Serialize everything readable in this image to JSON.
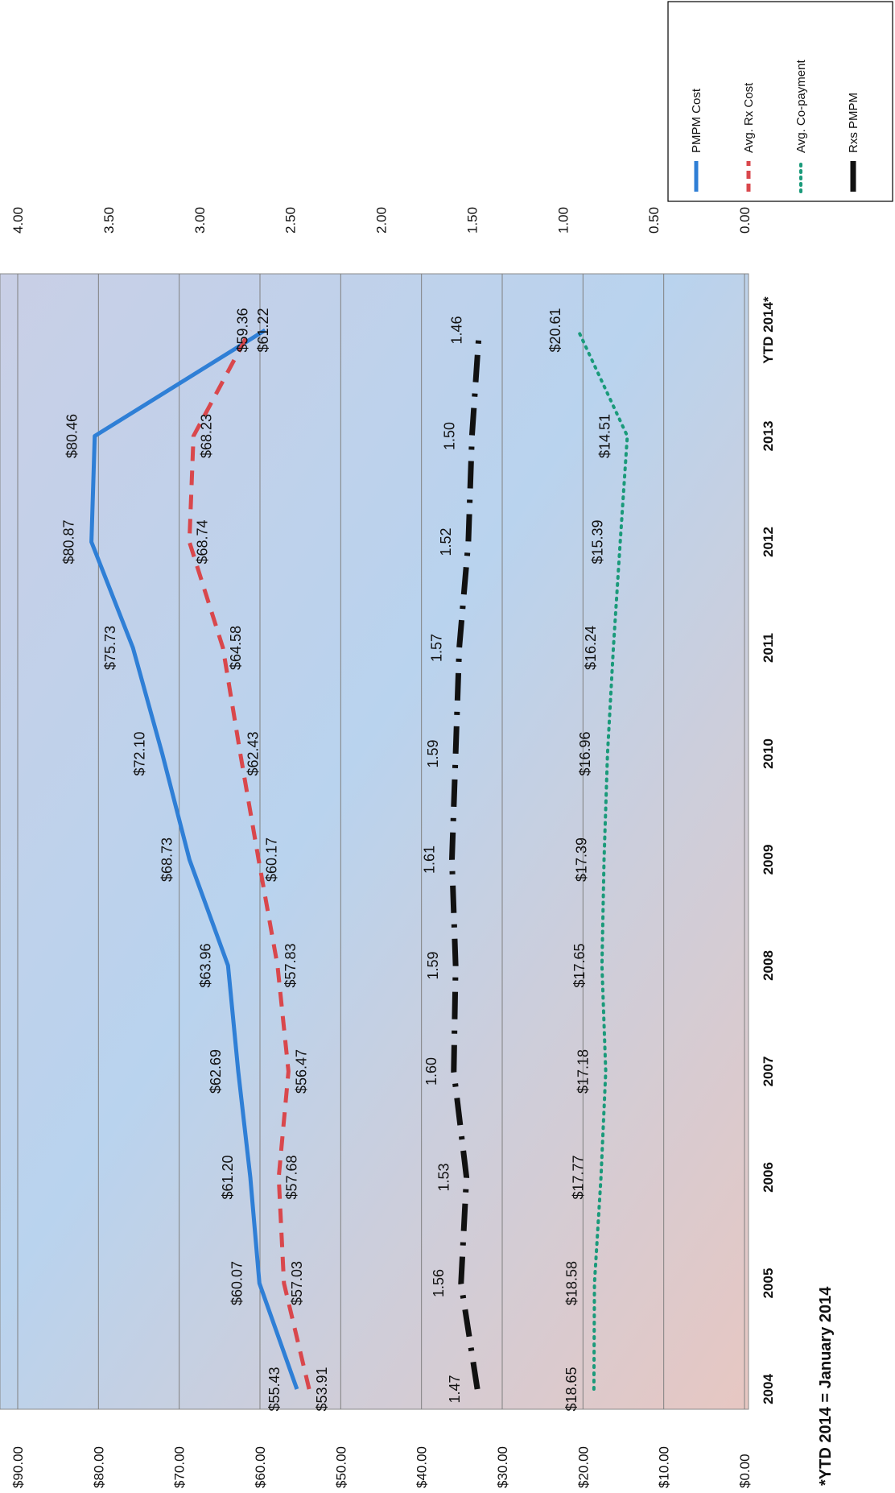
{
  "chart_data": {
    "type": "line",
    "orientation": "rotated-90-counterclockwise",
    "categories": [
      "2004",
      "2005",
      "2006",
      "2007",
      "2008",
      "2009",
      "2010",
      "2011",
      "2012",
      "2013",
      "YTD 2014*"
    ],
    "left_axis": {
      "ticks": [
        "$0.00",
        "$10.00",
        "$20.00",
        "$30.00",
        "$40.00",
        "$50.00",
        "$60.00",
        "$70.00",
        "$80.00",
        "$90.00"
      ],
      "range": [
        0,
        90
      ]
    },
    "right_axis": {
      "ticks": [
        "0.00",
        "0.50",
        "1.00",
        "1.50",
        "2.00",
        "2.50",
        "3.00",
        "3.50",
        "4.00"
      ],
      "range": [
        0,
        4
      ]
    },
    "grid": true,
    "legend_position": "top-right",
    "series": [
      {
        "name": "PMPM Cost",
        "axis": "left",
        "style": "solid",
        "color": "#2f7fd6",
        "values": [
          55.43,
          60.07,
          61.2,
          62.69,
          63.96,
          68.73,
          72.1,
          75.73,
          80.87,
          80.46,
          59.36
        ],
        "labels": [
          "$55.43",
          "$60.07",
          "$61.20",
          "$62.69",
          "$63.96",
          "$68.73",
          "$72.10",
          "$75.73",
          "$80.87",
          "$80.46",
          "$59.36"
        ]
      },
      {
        "name": "Avg. Rx Cost",
        "axis": "left",
        "style": "dashed",
        "color": "#d9474c",
        "values": [
          53.91,
          57.03,
          57.68,
          56.47,
          57.83,
          60.17,
          62.43,
          64.58,
          68.74,
          68.23,
          61.22
        ],
        "labels": [
          "$53.91",
          "$57.03",
          "$57.68",
          "$56.47",
          "$57.83",
          "$60.17",
          "$62.43",
          "$64.58",
          "$68.74",
          "$68.23",
          "$61.22"
        ]
      },
      {
        "name": "Avg. Co-payment",
        "axis": "left",
        "style": "dotted",
        "color": "#1a9a7a",
        "values": [
          18.65,
          18.58,
          17.77,
          17.18,
          17.65,
          17.39,
          16.96,
          16.24,
          15.39,
          14.51,
          20.61
        ],
        "labels": [
          "$18.65",
          "$18.58",
          "$17.77",
          "$17.18",
          "$17.65",
          "$17.39",
          "$16.96",
          "$16.24",
          "$15.39",
          "$14.51",
          "$20.61"
        ]
      },
      {
        "name": "Rxs PMPM",
        "axis": "right",
        "style": "dash-dot",
        "color": "#111111",
        "values": [
          1.47,
          1.56,
          1.53,
          1.6,
          1.59,
          1.61,
          1.59,
          1.57,
          1.52,
          1.5,
          1.46
        ],
        "labels": [
          "1.47",
          "1.56",
          "1.53",
          "1.60",
          "1.59",
          "1.61",
          "1.59",
          "1.57",
          "1.52",
          "1.50",
          "1.46"
        ]
      }
    ],
    "footnote": "*YTD 2014 = January 2014"
  }
}
